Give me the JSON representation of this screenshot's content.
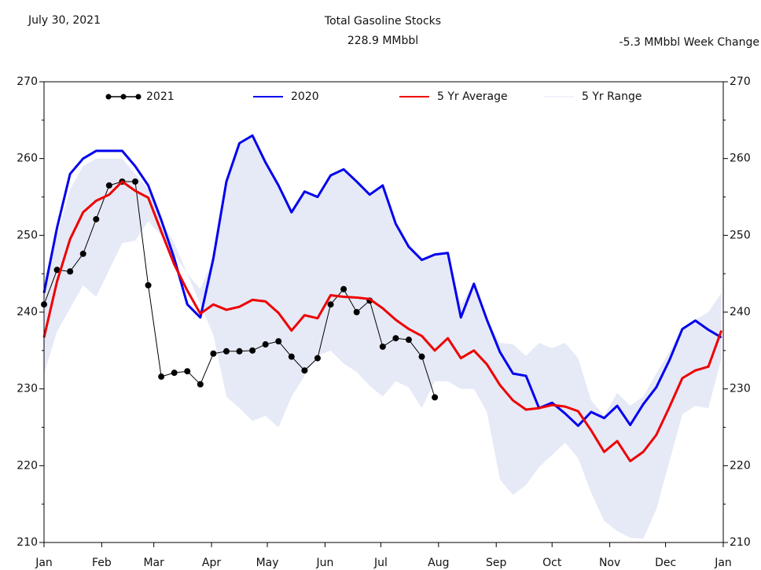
{
  "chart_data": {
    "type": "line",
    "date": "July 30, 2021",
    "title": "Total Gasoline Stocks",
    "subtitle": "228.9 MMbbl",
    "annotation": "-5.3 MMbbl Week Change",
    "xlim": [
      0,
      365
    ],
    "xticks": [
      {
        "value": 0,
        "label": "Jan"
      },
      {
        "value": 31,
        "label": "Feb"
      },
      {
        "value": 59,
        "label": "Mar"
      },
      {
        "value": 90,
        "label": "Apr"
      },
      {
        "value": 120,
        "label": "May"
      },
      {
        "value": 151,
        "label": "Jun"
      },
      {
        "value": 181,
        "label": "Jul"
      },
      {
        "value": 212,
        "label": "Aug"
      },
      {
        "value": 243,
        "label": "Sep"
      },
      {
        "value": 273,
        "label": "Oct"
      },
      {
        "value": 304,
        "label": "Nov"
      },
      {
        "value": 334,
        "label": "Dec"
      },
      {
        "value": 365,
        "label": "Jan"
      }
    ],
    "ylim": [
      210,
      270
    ],
    "yticks": [
      210,
      220,
      230,
      240,
      250,
      260,
      270
    ],
    "yticks_minor": [
      215,
      225,
      235,
      245,
      255,
      265
    ],
    "legend": "top",
    "range": {
      "name": "5 Yr Range",
      "color": "#e6e9f6",
      "x": [
        0,
        7,
        14,
        21,
        28,
        35,
        42,
        49,
        56,
        63,
        70,
        77,
        84,
        91,
        98,
        105,
        112,
        119,
        126,
        133,
        140,
        147,
        154,
        161,
        168,
        175,
        182,
        189,
        196,
        203,
        210,
        217,
        224,
        231,
        238,
        245,
        252,
        259,
        266,
        273,
        280,
        287,
        294,
        301,
        308,
        315,
        322,
        329,
        336,
        343,
        350,
        357,
        364
      ],
      "high": [
        244,
        250,
        256,
        259,
        260,
        260,
        260,
        258,
        256,
        252,
        249,
        245,
        243,
        247,
        257,
        262,
        263,
        259.5,
        256.5,
        253,
        255.7,
        255,
        257.8,
        258.6,
        257,
        255.3,
        256.5,
        251.5,
        248.5,
        246.8,
        247.5,
        247.7,
        241,
        243.7,
        239,
        236,
        235.8,
        234.3,
        236,
        235.3,
        236,
        234,
        228.5,
        226.5,
        229.5,
        227.8,
        229,
        232,
        234.8,
        238,
        239,
        240,
        242.5
      ],
      "low": [
        232,
        237.5,
        240.5,
        243.5,
        242,
        245.5,
        249,
        249.3,
        251.8,
        250,
        247.5,
        245,
        241,
        237,
        229,
        227.5,
        225.8,
        226.5,
        225,
        229,
        231.7,
        234.3,
        235,
        233.3,
        232.2,
        230.4,
        229,
        231,
        230.2,
        227.5,
        231,
        231,
        230,
        230,
        227,
        218.2,
        216.2,
        217.5,
        219.8,
        221.4,
        223,
        221,
        216.5,
        212.8,
        211.5,
        210.6,
        210.5,
        214.3,
        220.5,
        226.7,
        227.8,
        227.5,
        234
      ]
    },
    "series": [
      {
        "name": "2021",
        "color": "#000000",
        "markers": true,
        "x": [
          0,
          7,
          14,
          21,
          28,
          35,
          42,
          49,
          56,
          63,
          70,
          77,
          84,
          91,
          98,
          105,
          112,
          119,
          126,
          133,
          140,
          147,
          154,
          161,
          168,
          175,
          182,
          189,
          196,
          203,
          210
        ],
        "values": [
          241,
          245.5,
          245.3,
          247.6,
          252.1,
          256.5,
          257,
          257,
          243.5,
          231.6,
          232.1,
          232.3,
          230.6,
          234.6,
          234.9,
          234.9,
          235,
          235.8,
          236.2,
          234.2,
          232.4,
          234,
          241,
          243,
          240,
          241.5,
          235.5,
          236.6,
          236.4,
          234.2,
          228.9
        ]
      },
      {
        "name": "2020",
        "color": "#0000ee",
        "markers": false,
        "x": [
          0,
          7,
          14,
          21,
          28,
          35,
          42,
          49,
          56,
          63,
          70,
          77,
          84,
          91,
          98,
          105,
          112,
          119,
          126,
          133,
          140,
          147,
          154,
          161,
          168,
          175,
          182,
          189,
          196,
          203,
          210,
          217,
          224,
          231,
          238,
          245,
          252,
          259,
          266,
          273,
          280,
          287,
          294,
          301,
          308,
          315,
          322,
          329,
          336,
          343,
          350,
          357,
          364
        ],
        "values": [
          242.5,
          251,
          258,
          260,
          261,
          261,
          261,
          259,
          256.5,
          252,
          247,
          241,
          239.3,
          247,
          257,
          262,
          263,
          259.5,
          256.5,
          253,
          255.7,
          255,
          257.8,
          258.6,
          257,
          255.3,
          256.5,
          251.5,
          248.5,
          246.8,
          247.5,
          247.7,
          239.3,
          243.7,
          239,
          234.8,
          232,
          231.7,
          227.5,
          228.2,
          226.8,
          225.2,
          227,
          226.2,
          227.8,
          225.3,
          228,
          230.2,
          233.7,
          237.8,
          238.9,
          237.7,
          236.7
        ]
      },
      {
        "name": "5 Yr Average",
        "color": "#ee0000",
        "markers": false,
        "x": [
          0,
          7,
          14,
          21,
          28,
          35,
          42,
          49,
          56,
          63,
          70,
          77,
          84,
          91,
          98,
          105,
          112,
          119,
          126,
          133,
          140,
          147,
          154,
          161,
          168,
          175,
          182,
          189,
          196,
          203,
          210,
          217,
          224,
          231,
          238,
          245,
          252,
          259,
          266,
          273,
          280,
          287,
          294,
          301,
          308,
          315,
          322,
          329,
          336,
          343,
          350,
          357,
          364
        ],
        "values": [
          236.7,
          244,
          249.5,
          253,
          254.5,
          255.3,
          257,
          255.8,
          254.9,
          250.5,
          246.2,
          242.8,
          239.8,
          241,
          240.3,
          240.7,
          241.6,
          241.4,
          239.9,
          237.6,
          239.6,
          239.2,
          242.2,
          242,
          241.9,
          241.7,
          240.5,
          239,
          237.8,
          236.9,
          235,
          236.6,
          234,
          235,
          233.2,
          230.5,
          228.5,
          227.3,
          227.5,
          227.9,
          227.7,
          227.1,
          224.6,
          221.8,
          223.2,
          220.6,
          221.8,
          224,
          227.6,
          231.4,
          232.4,
          232.9,
          237.6
        ]
      }
    ]
  }
}
